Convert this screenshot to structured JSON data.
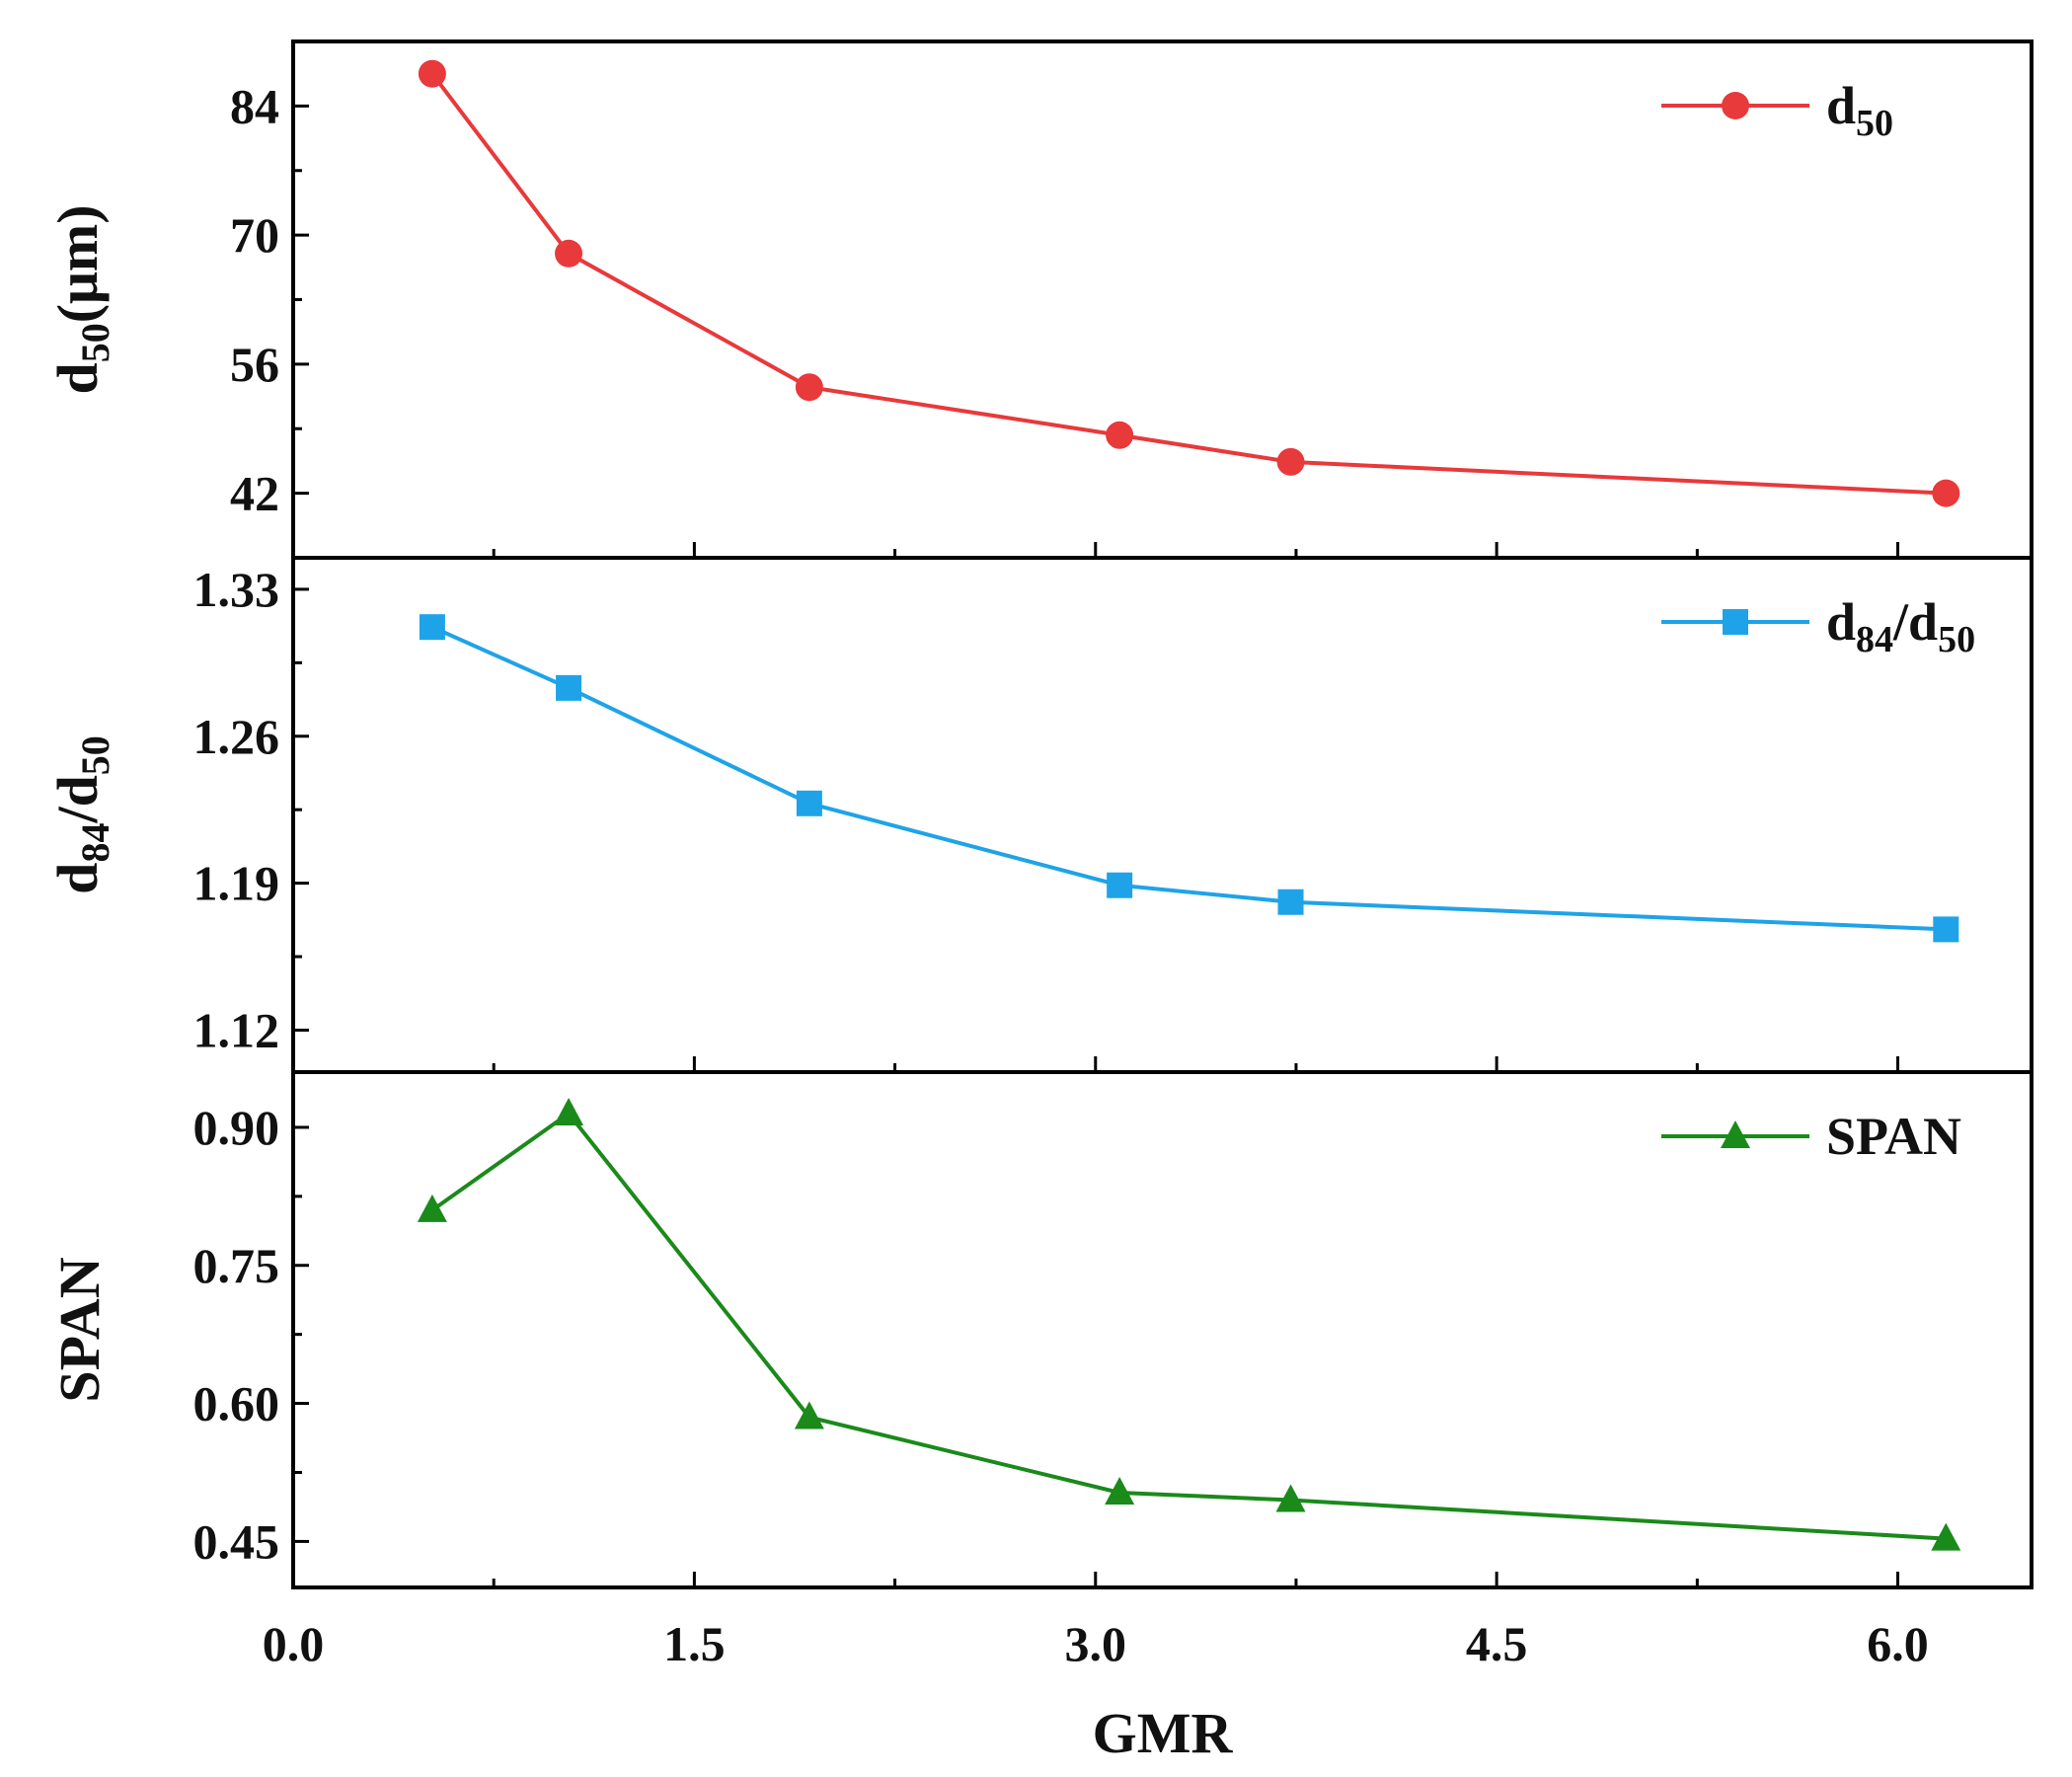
{
  "chart_data": {
    "type": "line",
    "xlabel": "GMR",
    "xlim": [
      0,
      6.5
    ],
    "xticks": [
      "0.0",
      "1.5",
      "3.0",
      "4.5",
      "6.0"
    ],
    "xtick_values": [
      0,
      1.5,
      3.0,
      4.5,
      6.0
    ],
    "x": [
      0.52,
      1.03,
      1.93,
      3.09,
      3.73,
      6.18
    ],
    "panels": [
      {
        "id": "d50",
        "ylabel": "d",
        "ylabel_sub": "50",
        "ylabel_suffix": "(μm)",
        "ylim": [
          35,
          91
        ],
        "yticks": [
          "42",
          "56",
          "70",
          "84"
        ],
        "ytick_values": [
          42,
          56,
          70,
          84
        ],
        "minor_ytick_values": [
          49,
          63,
          77
        ],
        "series": [
          {
            "name": "d50",
            "legend_main": "d",
            "legend_sub": "50",
            "color": "#e8393b",
            "marker": "circle",
            "values": [
              87.5,
              68.0,
              53.5,
              48.3,
              45.4,
              42.0
            ]
          }
        ]
      },
      {
        "id": "ratio",
        "ylabel": "d",
        "ylabel_sub": "84",
        "ylabel_mid": "/d",
        "ylabel_sub2": "50",
        "ylim": [
          1.1,
          1.345
        ],
        "yticks": [
          "1.12",
          "1.19",
          "1.26",
          "1.33"
        ],
        "ytick_values": [
          1.12,
          1.19,
          1.26,
          1.33
        ],
        "minor_ytick_values": [
          1.155,
          1.225,
          1.295
        ],
        "series": [
          {
            "name": "d84/d50",
            "legend_main": "d",
            "legend_sub": "84",
            "legend_mid": "/d",
            "legend_sub2": "50",
            "color": "#1fa3e8",
            "marker": "square",
            "values": [
              1.312,
              1.283,
              1.228,
              1.189,
              1.181,
              1.168
            ]
          }
        ]
      },
      {
        "id": "span",
        "ylabel": "SPAN",
        "ylim": [
          0.4,
          0.96
        ],
        "yticks": [
          "0.45",
          "0.60",
          "0.75",
          "0.90"
        ],
        "ytick_values": [
          0.45,
          0.6,
          0.75,
          0.9
        ],
        "minor_ytick_values": [
          0.525,
          0.675,
          0.825
        ],
        "series": [
          {
            "name": "SPAN",
            "legend_main": "SPAN",
            "color": "#1a8a1a",
            "marker": "triangle",
            "values": [
              0.81,
              0.915,
              0.585,
              0.503,
              0.495,
              0.453
            ]
          }
        ]
      }
    ]
  }
}
